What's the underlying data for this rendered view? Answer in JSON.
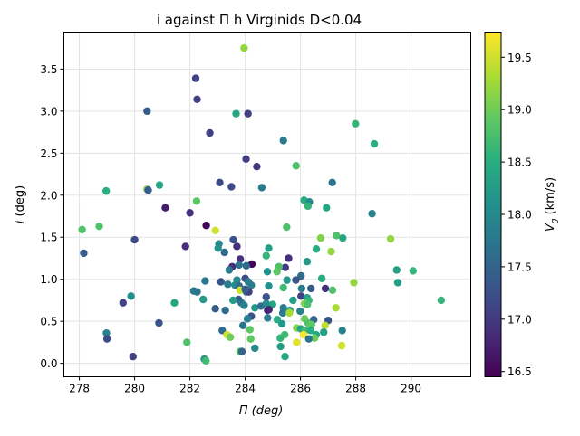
{
  "chart_data": {
    "type": "scatter",
    "title": "i against Π h Virginids D<0.04",
    "xlabel": "Π (deg)",
    "ylabel_main": "i",
    "ylabel_unit": " (deg)",
    "colorbar_label_main": "V",
    "colorbar_label_sub": "g",
    "colorbar_label_unit": " (km/s)",
    "xlim": [
      277.44,
      292.16
    ],
    "ylim": [
      -0.16,
      3.94
    ],
    "clim": [
      16.45,
      19.74
    ],
    "grid": true,
    "colormap": "viridis",
    "xticks": [
      278,
      280,
      282,
      284,
      286,
      288,
      290
    ],
    "yticks": [
      0.0,
      0.5,
      1.0,
      1.5,
      2.0,
      2.5,
      3.0,
      3.5
    ],
    "cticks": [
      16.5,
      17.0,
      17.5,
      18.0,
      18.5,
      19.0,
      19.5
    ],
    "points_columns": [
      "Pi_deg",
      "i_deg",
      "Vg_kms"
    ],
    "points": [
      [
        283.96,
        3.75,
        19.2
      ],
      [
        282.21,
        3.39,
        17.1
      ],
      [
        282.26,
        3.14,
        17.1
      ],
      [
        280.45,
        3.0,
        17.4
      ],
      [
        283.67,
        2.97,
        18.4
      ],
      [
        284.1,
        2.97,
        17.1
      ],
      [
        282.72,
        2.74,
        17.1
      ],
      [
        284.03,
        2.43,
        17.1
      ],
      [
        284.42,
        2.34,
        17.0
      ],
      [
        283.08,
        2.15,
        17.2
      ],
      [
        283.5,
        2.1,
        17.2
      ],
      [
        284.6,
        2.09,
        17.8
      ],
      [
        280.45,
        2.07,
        19.1
      ],
      [
        280.49,
        2.06,
        17.4
      ],
      [
        280.9,
        2.12,
        18.4
      ],
      [
        278.97,
        2.05,
        18.5
      ],
      [
        282.24,
        1.93,
        18.9
      ],
      [
        287.99,
        2.85,
        18.6
      ],
      [
        285.38,
        2.65,
        17.8
      ],
      [
        288.67,
        2.61,
        18.5
      ],
      [
        285.84,
        2.35,
        18.8
      ],
      [
        287.15,
        2.15,
        17.7
      ],
      [
        286.13,
        1.94,
        18.5
      ],
      [
        286.32,
        1.92,
        18.0
      ],
      [
        286.27,
        1.87,
        18.6
      ],
      [
        286.94,
        1.85,
        18.4
      ],
      [
        288.59,
        1.78,
        17.9
      ],
      [
        281.11,
        1.85,
        16.7
      ],
      [
        282.0,
        1.79,
        16.9
      ],
      [
        282.59,
        1.64,
        16.5
      ],
      [
        282.92,
        1.58,
        19.5
      ],
      [
        278.1,
        1.59,
        18.8
      ],
      [
        278.72,
        1.63,
        18.8
      ],
      [
        280.0,
        1.47,
        17.2
      ],
      [
        278.16,
        1.31,
        17.4
      ],
      [
        281.84,
        1.39,
        16.9
      ],
      [
        283.57,
        1.47,
        17.3
      ],
      [
        283.05,
        1.42,
        18.0
      ],
      [
        283.02,
        1.37,
        18.1
      ],
      [
        283.7,
        1.39,
        16.9
      ],
      [
        283.25,
        1.32,
        17.6
      ],
      [
        283.82,
        1.24,
        16.9
      ],
      [
        284.24,
        1.18,
        16.5
      ],
      [
        283.78,
        1.17,
        17.7
      ],
      [
        284.04,
        1.16,
        17.6
      ],
      [
        283.53,
        1.15,
        16.9
      ],
      [
        283.42,
        1.11,
        17.8
      ],
      [
        284.0,
        1.01,
        17.2
      ],
      [
        283.7,
        0.99,
        18.0
      ],
      [
        284.11,
        0.97,
        17.8
      ],
      [
        284.22,
        0.93,
        17.8
      ],
      [
        282.55,
        0.98,
        17.8
      ],
      [
        283.12,
        0.97,
        17.3
      ],
      [
        283.37,
        0.94,
        17.8
      ],
      [
        283.63,
        0.93,
        18.0
      ],
      [
        283.78,
        0.92,
        17.6
      ],
      [
        283.81,
        0.87,
        19.5
      ],
      [
        284.04,
        0.85,
        17.6
      ],
      [
        284.13,
        0.85,
        17.1
      ],
      [
        284.0,
        0.88,
        17.4
      ],
      [
        282.14,
        0.86,
        17.8
      ],
      [
        282.26,
        0.85,
        17.7
      ],
      [
        282.48,
        0.76,
        18.2
      ],
      [
        283.76,
        0.76,
        17.4
      ],
      [
        283.56,
        0.75,
        18.3
      ],
      [
        283.86,
        0.72,
        17.7
      ],
      [
        283.96,
        0.69,
        17.9
      ],
      [
        284.35,
        0.66,
        18.2
      ],
      [
        284.57,
        0.68,
        17.6
      ],
      [
        284.81,
        0.63,
        16.9
      ],
      [
        279.58,
        0.72,
        17.1
      ],
      [
        279.87,
        0.8,
        18.1
      ],
      [
        281.44,
        0.72,
        18.4
      ],
      [
        282.92,
        0.65,
        17.4
      ],
      [
        283.28,
        0.63,
        17.6
      ],
      [
        284.22,
        0.56,
        17.3
      ],
      [
        284.08,
        0.53,
        17.9
      ],
      [
        280.88,
        0.48,
        17.3
      ],
      [
        283.17,
        0.39,
        17.6
      ],
      [
        283.92,
        0.45,
        17.7
      ],
      [
        284.17,
        0.4,
        18.9
      ],
      [
        283.34,
        0.34,
        19.5
      ],
      [
        283.46,
        0.31,
        19.0
      ],
      [
        284.2,
        0.29,
        18.9
      ],
      [
        284.35,
        0.18,
        18.0
      ],
      [
        283.81,
        0.14,
        18.9
      ],
      [
        283.88,
        0.14,
        17.5
      ],
      [
        281.89,
        0.25,
        18.8
      ],
      [
        278.98,
        0.36,
        17.9
      ],
      [
        279.0,
        0.29,
        17.2
      ],
      [
        279.94,
        0.08,
        17.1
      ],
      [
        282.52,
        0.05,
        18.2
      ],
      [
        282.58,
        0.03,
        18.7
      ],
      [
        284.85,
        1.37,
        18.3
      ],
      [
        284.76,
        1.28,
        18.6
      ],
      [
        286.57,
        1.36,
        18.5
      ],
      [
        287.11,
        1.33,
        19.2
      ],
      [
        285.57,
        1.25,
        16.9
      ],
      [
        286.24,
        1.21,
        18.2
      ],
      [
        285.5,
        1.62,
        18.8
      ],
      [
        286.73,
        1.49,
        19.1
      ],
      [
        287.3,
        1.52,
        18.8
      ],
      [
        287.53,
        1.49,
        18.4
      ],
      [
        289.26,
        1.48,
        19.2
      ],
      [
        285.45,
        1.14,
        17.0
      ],
      [
        285.22,
        1.15,
        18.8
      ],
      [
        285.15,
        1.09,
        18.9
      ],
      [
        284.8,
        1.09,
        18.1
      ],
      [
        289.48,
        1.11,
        18.3
      ],
      [
        290.07,
        1.1,
        18.6
      ],
      [
        286.02,
        1.04,
        17.6
      ],
      [
        285.83,
        0.99,
        17.3
      ],
      [
        285.51,
        0.99,
        18.2
      ],
      [
        286.77,
        1.01,
        18.5
      ],
      [
        289.52,
        0.96,
        18.3
      ],
      [
        287.93,
        0.96,
        19.2
      ],
      [
        284.85,
        0.92,
        18.1
      ],
      [
        285.38,
        0.9,
        18.7
      ],
      [
        286.04,
        0.89,
        17.8
      ],
      [
        286.38,
        0.89,
        17.4
      ],
      [
        286.9,
        0.89,
        16.9
      ],
      [
        287.16,
        0.87,
        18.8
      ],
      [
        291.09,
        0.75,
        18.6
      ],
      [
        284.76,
        0.79,
        17.3
      ],
      [
        286.02,
        0.8,
        17.1
      ],
      [
        286.24,
        0.78,
        18.3
      ],
      [
        286.3,
        0.75,
        18.6
      ],
      [
        285.73,
        0.75,
        18.3
      ],
      [
        284.99,
        0.7,
        18.4
      ],
      [
        284.76,
        0.71,
        18.0
      ],
      [
        286.15,
        0.71,
        19.1
      ],
      [
        286.25,
        0.7,
        18.8
      ],
      [
        287.28,
        0.66,
        19.3
      ],
      [
        284.86,
        0.64,
        16.8
      ],
      [
        285.38,
        0.66,
        17.8
      ],
      [
        285.36,
        0.6,
        17.8
      ],
      [
        285.61,
        0.63,
        18.3
      ],
      [
        285.6,
        0.6,
        19.3
      ],
      [
        285.99,
        0.62,
        17.9
      ],
      [
        284.81,
        0.54,
        17.8
      ],
      [
        285.16,
        0.52,
        18.5
      ],
      [
        285.33,
        0.47,
        18.2
      ],
      [
        286.15,
        0.53,
        19.0
      ],
      [
        286.48,
        0.52,
        17.5
      ],
      [
        287.0,
        0.51,
        17.3
      ],
      [
        286.27,
        0.48,
        18.8
      ],
      [
        286.4,
        0.46,
        18.9
      ],
      [
        285.86,
        0.42,
        19.1
      ],
      [
        286.89,
        0.45,
        19.4
      ],
      [
        286.01,
        0.41,
        18.4
      ],
      [
        286.18,
        0.39,
        18.7
      ],
      [
        286.37,
        0.39,
        18.5
      ],
      [
        286.84,
        0.37,
        18.3
      ],
      [
        287.51,
        0.39,
        17.9
      ],
      [
        286.11,
        0.34,
        19.7
      ],
      [
        286.57,
        0.34,
        18.4
      ],
      [
        286.51,
        0.3,
        19.0
      ],
      [
        286.3,
        0.29,
        17.7
      ],
      [
        285.43,
        0.34,
        18.7
      ],
      [
        285.27,
        0.3,
        18.6
      ],
      [
        285.86,
        0.25,
        19.6
      ],
      [
        287.49,
        0.21,
        19.5
      ],
      [
        285.28,
        0.2,
        18.3
      ],
      [
        285.44,
        0.08,
        18.4
      ]
    ]
  }
}
